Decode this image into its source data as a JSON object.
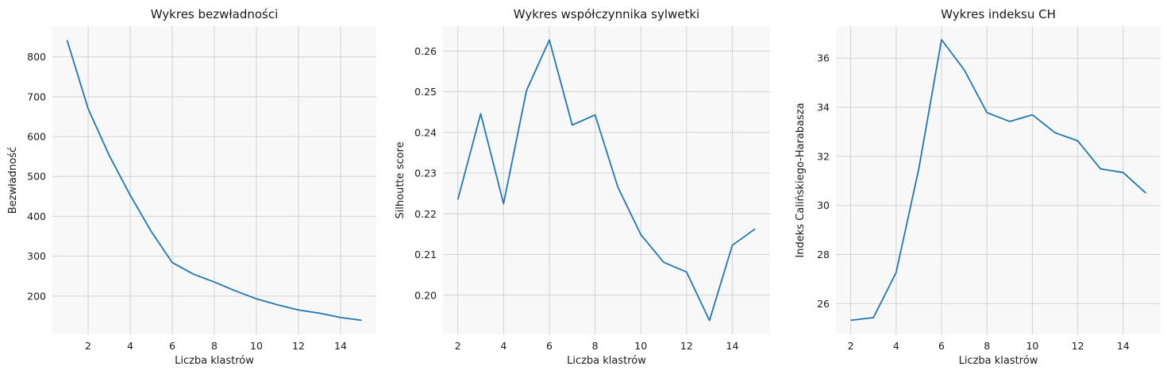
{
  "chart_data": [
    {
      "type": "line",
      "title": "Wykres bezwładności",
      "xlabel": "Liczba klastrów",
      "ylabel": "Bezwładność",
      "x": [
        1,
        2,
        3,
        4,
        5,
        6,
        7,
        8,
        9,
        10,
        11,
        12,
        13,
        14,
        15
      ],
      "series": [
        {
          "name": "",
          "values": [
            842,
            670,
            553,
            453,
            362,
            284,
            255,
            235,
            213,
            193,
            178,
            165,
            157,
            146,
            139
          ]
        }
      ],
      "xlim": [
        0.3,
        15.7
      ],
      "ylim": [
        104,
        877
      ],
      "xticks": [
        2,
        4,
        6,
        8,
        10,
        12,
        14
      ],
      "yticks": [
        200,
        300,
        400,
        500,
        600,
        700,
        800
      ],
      "grid": true,
      "color": "#1f77b4"
    },
    {
      "type": "line",
      "title": "Wykres współczynnika sylwetki",
      "xlabel": "Liczba klastrów",
      "ylabel": "Silhoutte score",
      "x": [
        2,
        3,
        4,
        5,
        6,
        7,
        8,
        9,
        10,
        11,
        12,
        13,
        14,
        15
      ],
      "series": [
        {
          "name": "",
          "values": [
            0.2235,
            0.2446,
            0.2225,
            0.2503,
            0.2627,
            0.2418,
            0.2443,
            0.2265,
            0.2149,
            0.2081,
            0.2057,
            0.1938,
            0.2123,
            0.2163
          ]
        }
      ],
      "xlim": [
        1.35,
        15.65
      ],
      "ylim": [
        0.1904,
        0.2661
      ],
      "xticks": [
        2,
        4,
        6,
        8,
        10,
        12,
        14
      ],
      "yticks": [
        0.2,
        0.21,
        0.22,
        0.23,
        0.24,
        0.25,
        0.26
      ],
      "grid": true,
      "color": "#1f77b4"
    },
    {
      "type": "line",
      "title": "Wykres indeksu CH",
      "xlabel": "Liczba klastrów",
      "ylabel": "Indeks Calińskiego-Harabasza",
      "x": [
        2,
        3,
        4,
        5,
        6,
        7,
        8,
        9,
        10,
        11,
        12,
        13,
        14,
        15
      ],
      "series": [
        {
          "name": "",
          "values": [
            25.32,
            25.43,
            27.27,
            31.5,
            36.75,
            35.52,
            33.78,
            33.42,
            33.69,
            32.96,
            32.63,
            31.49,
            31.34,
            30.5
          ]
        }
      ],
      "xlim": [
        1.35,
        15.65
      ],
      "ylim": [
        24.75,
        37.3
      ],
      "xticks": [
        2,
        4,
        6,
        8,
        10,
        12,
        14
      ],
      "yticks": [
        26,
        28,
        30,
        32,
        34,
        36
      ],
      "grid": true,
      "color": "#1f77b4"
    }
  ]
}
